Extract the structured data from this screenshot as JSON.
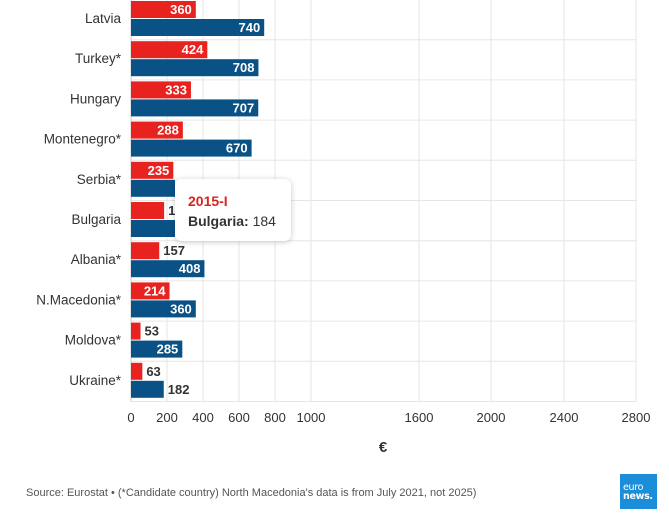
{
  "chart_data": {
    "type": "bar",
    "orientation": "horizontal",
    "categories": [
      "Latvia",
      "Turkey*",
      "Hungary",
      "Montenegro*",
      "Serbia*",
      "Bulgaria",
      "Albania*",
      "N.Macedonia*",
      "Moldova*",
      "Ukraine*"
    ],
    "series": [
      {
        "name": "2015-I",
        "color": "#e8231f",
        "values": [
          360,
          424,
          333,
          288,
          235,
          184,
          157,
          214,
          53,
          63
        ]
      },
      {
        "color": "#0a5286",
        "values": [
          740,
          708,
          707,
          670,
          null,
          null,
          408,
          360,
          285,
          182
        ]
      }
    ],
    "xlabel": "€",
    "xlim": [
      0,
      2800
    ],
    "xticks": [
      "0",
      "200",
      "400",
      "600",
      "800",
      "1000",
      "1600",
      "2000",
      "2400",
      "2800"
    ],
    "grid": true
  },
  "tooltip": {
    "title": "2015-I",
    "label": "Bulgaria:",
    "value": "184"
  },
  "footer": {
    "source": "Source: Eurostat • (*Candidate country) North Macedonia's data is from July 2021, not 2025)"
  },
  "logo": {
    "line1": "euro",
    "line2": "news."
  }
}
